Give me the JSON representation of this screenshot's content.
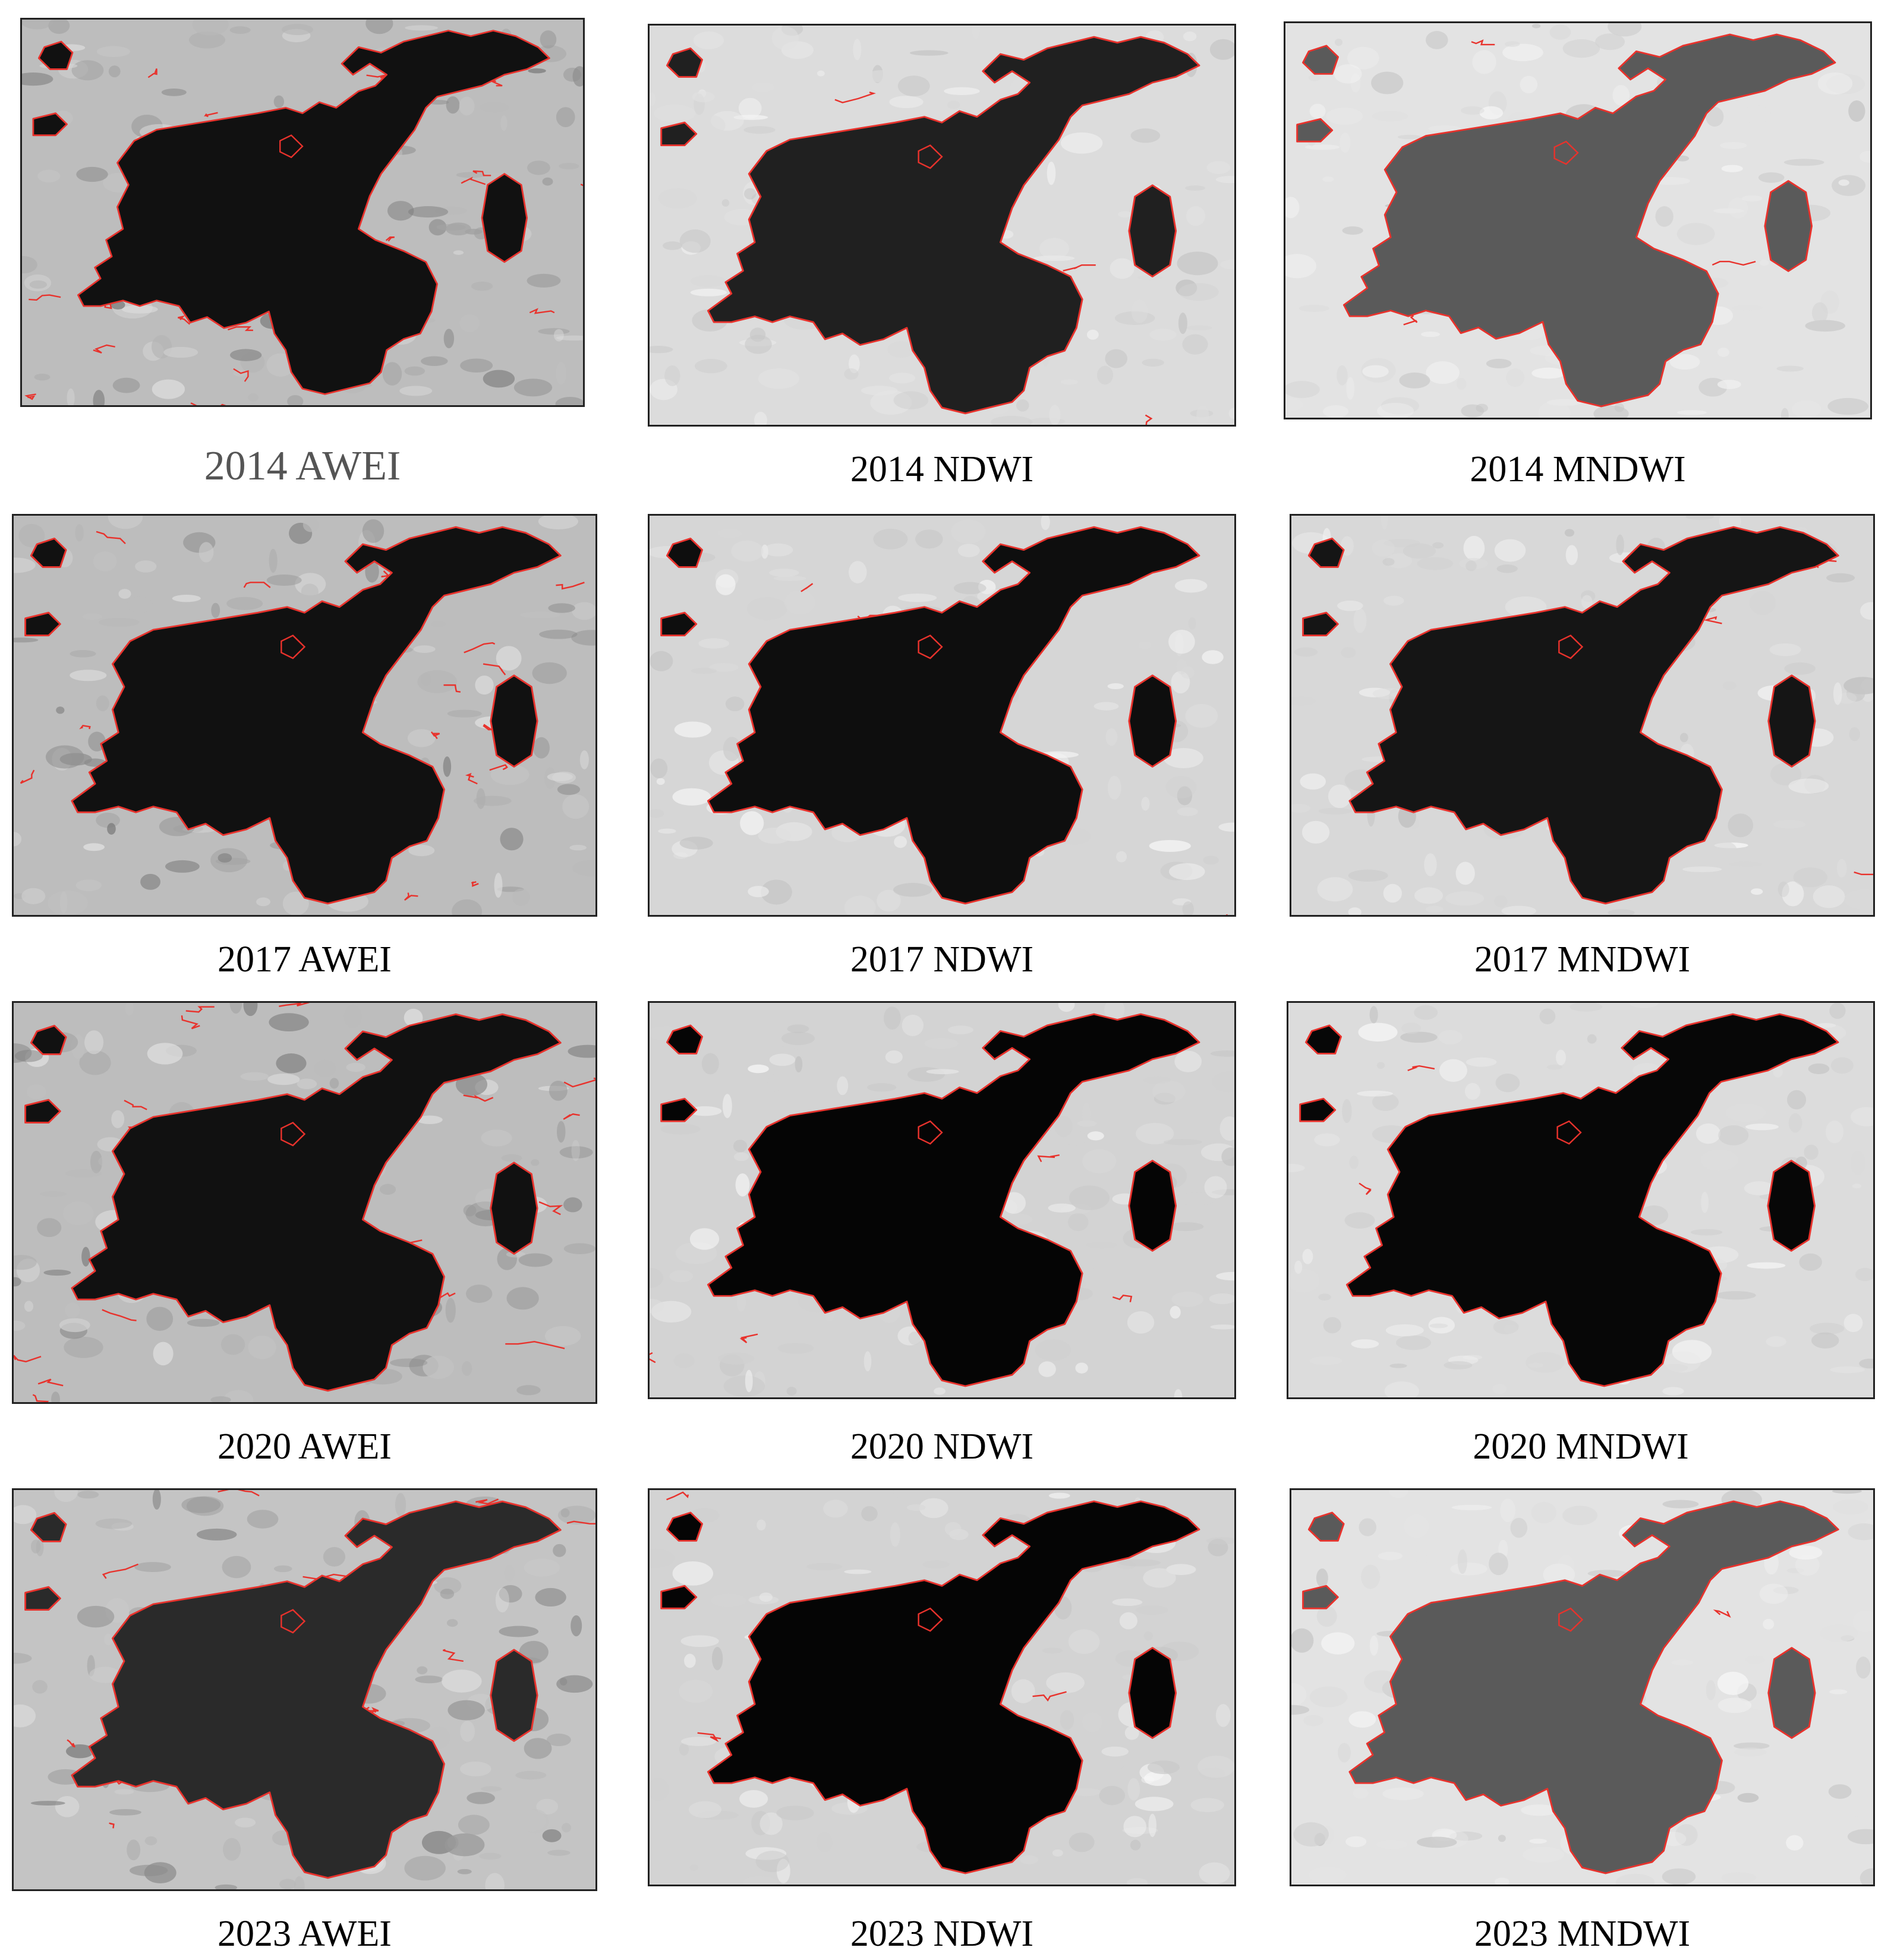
{
  "figure": {
    "panels": [
      {
        "caption": "2014 AWEI",
        "index": "AWEI",
        "year": "2014",
        "style": "awei"
      },
      {
        "caption": "2014 NDWI",
        "index": "NDWI",
        "year": "2014",
        "style": "ndwi"
      },
      {
        "caption": "2014 MNDWI",
        "index": "MNDWI",
        "year": "2014",
        "style": "mndwi-grey"
      },
      {
        "caption": "2017 AWEI",
        "index": "AWEI",
        "year": "2017",
        "style": "awei"
      },
      {
        "caption": "2017 NDWI",
        "index": "NDWI",
        "year": "2017",
        "style": "ndwi-mixed"
      },
      {
        "caption": "2017 MNDWI",
        "index": "MNDWI",
        "year": "2017",
        "style": "mndwi-mixed"
      },
      {
        "caption": "2020 AWEI",
        "index": "AWEI",
        "year": "2020",
        "style": "awei"
      },
      {
        "caption": "2020 NDWI",
        "index": "NDWI",
        "year": "2020",
        "style": "ndwi-black"
      },
      {
        "caption": "2020 MNDWI",
        "index": "MNDWI",
        "year": "2020",
        "style": "mndwi-black"
      },
      {
        "caption": "2023 AWEI",
        "index": "AWEI",
        "year": "2023",
        "style": "awei-grey"
      },
      {
        "caption": "2023 NDWI",
        "index": "NDWI",
        "year": "2023",
        "style": "ndwi-black"
      },
      {
        "caption": "2023 MNDWI",
        "index": "MNDWI",
        "year": "2023",
        "style": "mndwi-grey"
      }
    ],
    "colors": {
      "boundary": "#e8322c",
      "water_dark": "#0a0a0a",
      "land_light": "#d9d9d9",
      "land_medium": "#a9a9a9"
    }
  }
}
